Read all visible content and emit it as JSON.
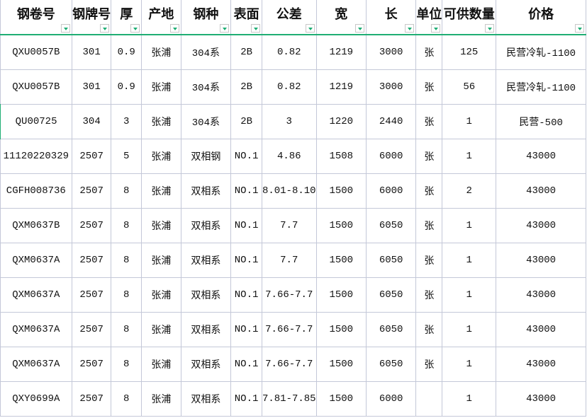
{
  "headers": [
    "钢卷号",
    "钢牌号",
    "厚",
    "产地",
    "钢种",
    "表面",
    "公差",
    "宽",
    "长",
    "单位",
    "可供数量",
    "价格"
  ],
  "rows": [
    [
      "QXU0057B",
      "301",
      "0.9",
      "张浦",
      "304系",
      "2B",
      "0.82",
      "1219",
      "3000",
      "张",
      "125",
      "民营冷轧-1100"
    ],
    [
      "QXU0057B",
      "301",
      "0.9",
      "张浦",
      "304系",
      "2B",
      "0.82",
      "1219",
      "3000",
      "张",
      "56",
      "民营冷轧-1100"
    ],
    [
      "QU00725",
      "304",
      "3",
      "张浦",
      "304系",
      "2B",
      "3",
      "1220",
      "2440",
      "张",
      "1",
      "民营-500"
    ],
    [
      "11120220329",
      "2507",
      "5",
      "张浦",
      "双相钢",
      "NO.1",
      "4.86",
      "1508",
      "6000",
      "张",
      "1",
      "43000"
    ],
    [
      "CGFH008736",
      "2507",
      "8",
      "张浦",
      "双相系",
      "NO.1",
      "8.01-8.10",
      "1500",
      "6000",
      "张",
      "2",
      "43000"
    ],
    [
      "QXM0637B",
      "2507",
      "8",
      "张浦",
      "双相系",
      "NO.1",
      "7.7",
      "1500",
      "6050",
      "张",
      "1",
      "43000"
    ],
    [
      "QXM0637A",
      "2507",
      "8",
      "张浦",
      "双相系",
      "NO.1",
      "7.7",
      "1500",
      "6050",
      "张",
      "1",
      "43000"
    ],
    [
      "QXM0637A",
      "2507",
      "8",
      "张浦",
      "双相系",
      "NO.1",
      "7.66-7.7",
      "1500",
      "6050",
      "张",
      "1",
      "43000"
    ],
    [
      "QXM0637A",
      "2507",
      "8",
      "张浦",
      "双相系",
      "NO.1",
      "7.66-7.7",
      "1500",
      "6050",
      "张",
      "1",
      "43000"
    ],
    [
      "QXM0637A",
      "2507",
      "8",
      "张浦",
      "双相系",
      "NO.1",
      "7.66-7.7",
      "1500",
      "6050",
      "张",
      "1",
      "43000"
    ],
    [
      "QXY0699A",
      "2507",
      "8",
      "张浦",
      "双相系",
      "NO.1",
      "7.81-7.85",
      "1500",
      "6000",
      "",
      "1",
      "43000"
    ]
  ],
  "colors": {
    "accent": "#1fae74",
    "grid": "#c4c8d8"
  }
}
